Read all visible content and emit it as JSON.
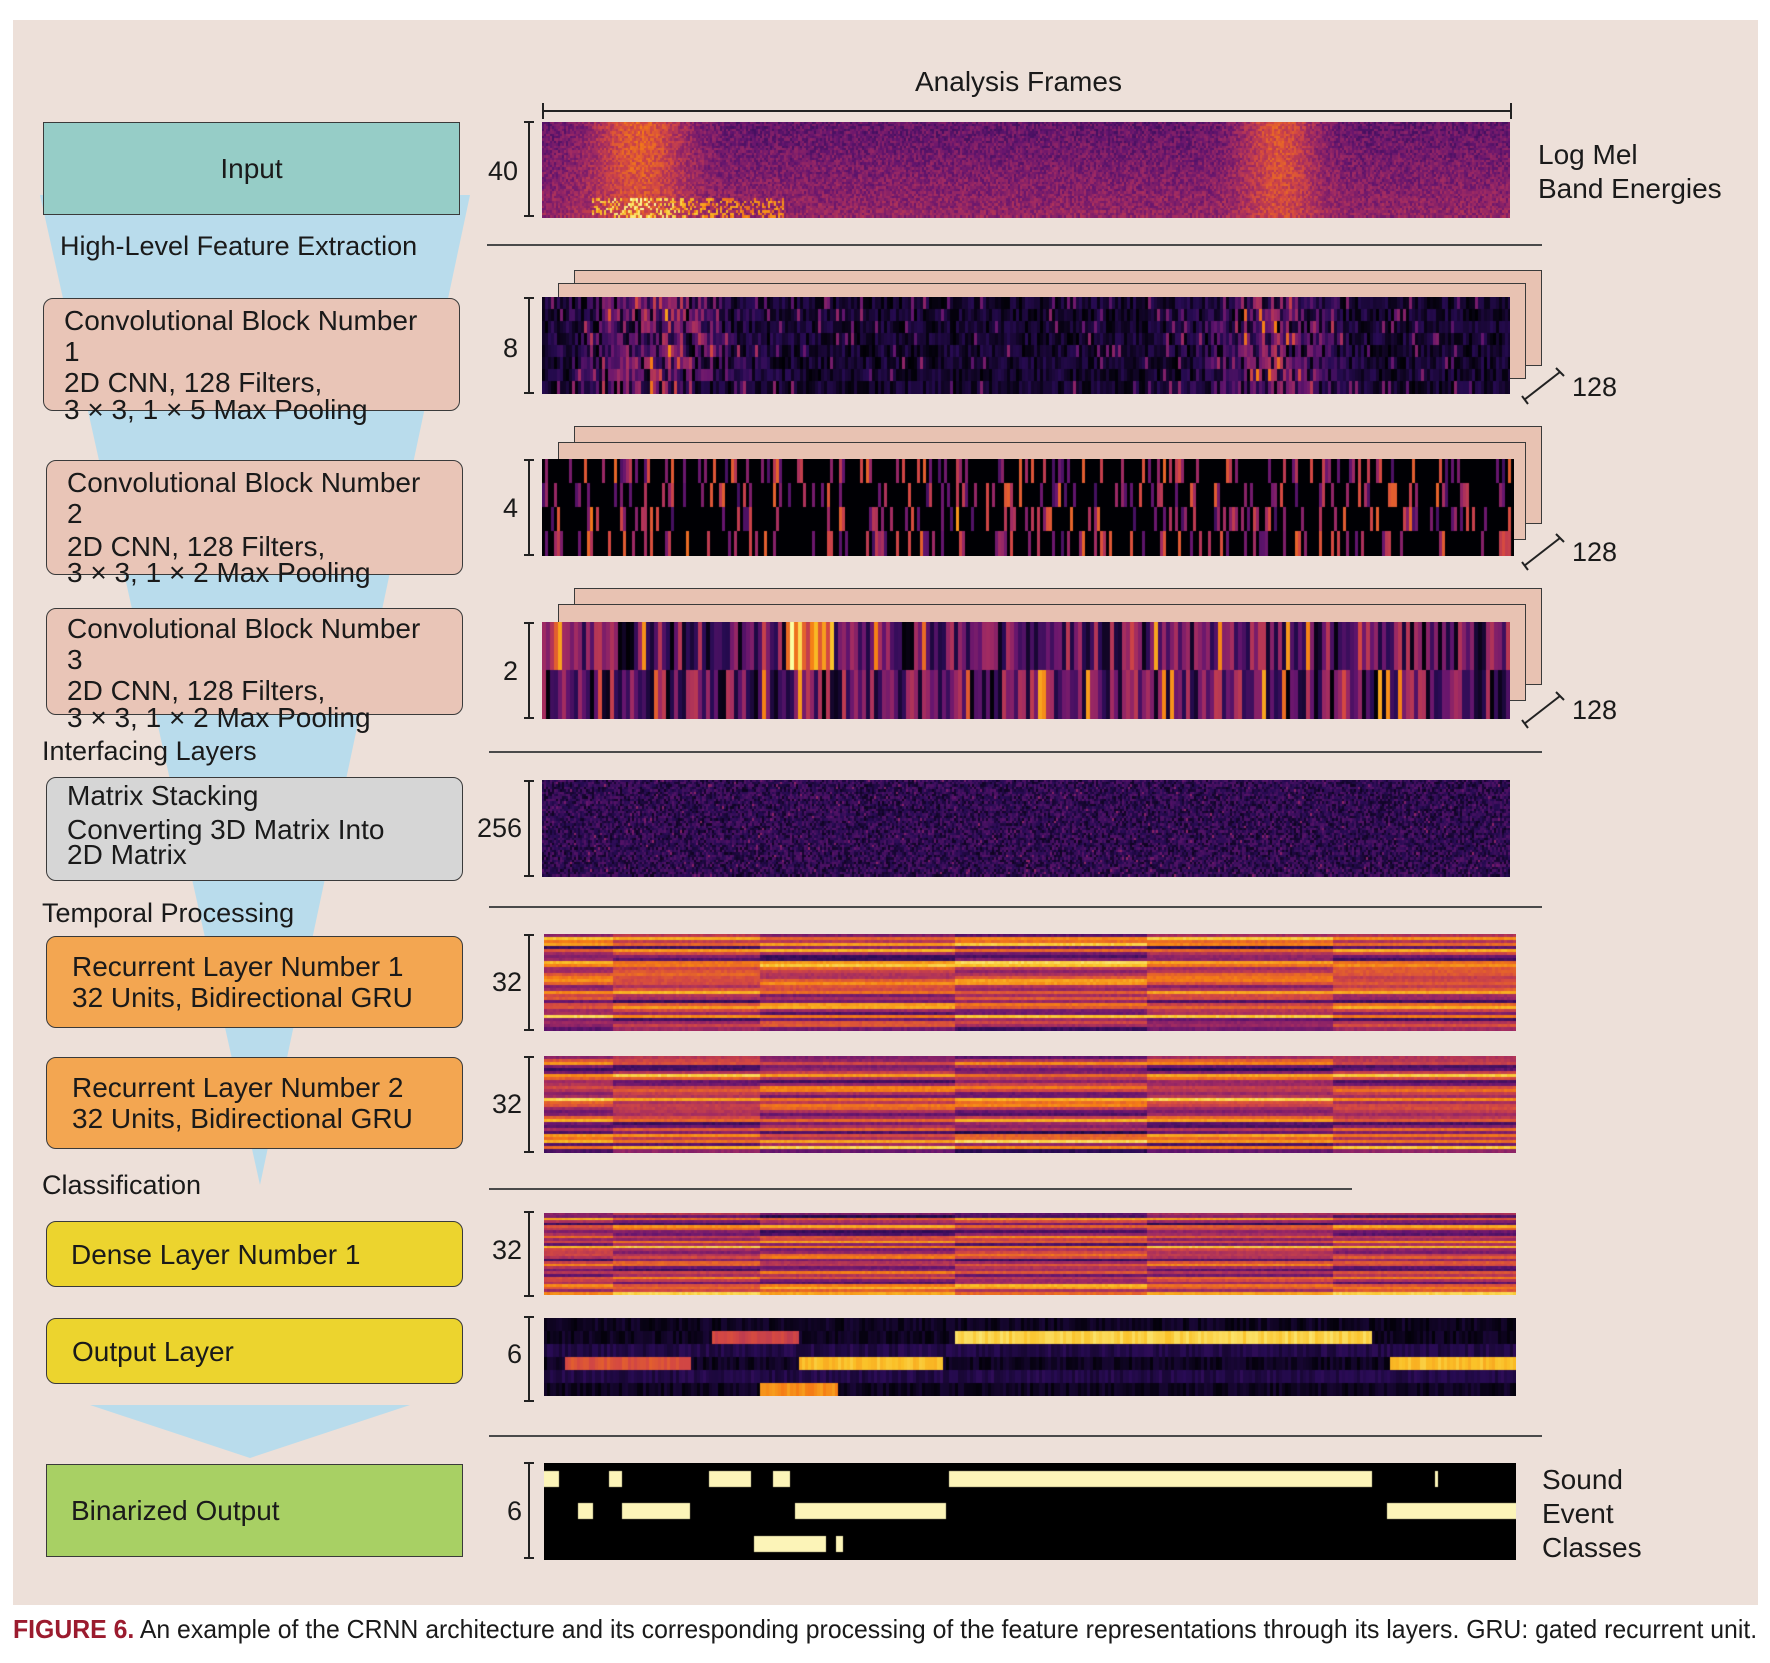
{
  "header": {
    "axis_label": "Analysis Frames"
  },
  "blocks": {
    "input": "Input",
    "conv1": [
      "Convolutional Block Number 1",
      "2D CNN, 128 Filters,",
      "3 × 3, 1 × 5 Max Pooling"
    ],
    "conv2": [
      "Convolutional Block Number 2",
      "2D CNN, 128 Filters,",
      "3 × 3, 1 × 2 Max Pooling"
    ],
    "conv3": [
      "Convolutional Block Number 3",
      "2D CNN, 128 Filters,",
      "3 × 3, 1 × 2 Max Pooling"
    ],
    "stack": [
      "Matrix Stacking",
      "Converting 3D Matrix Into",
      "2D Matrix"
    ],
    "rnn1": [
      "Recurrent Layer Number 1",
      "32 Units, Bidirectional GRU"
    ],
    "rnn2": [
      "Recurrent Layer Number 2",
      "32 Units, Bidirectional GRU"
    ],
    "dense1": "Dense Layer Number 1",
    "output": "Output Layer",
    "binarized": "Binarized Output"
  },
  "sections": {
    "feature": "High-Level Feature Extraction",
    "interfacing": "Interfacing Layers",
    "temporal": "Temporal Processing",
    "classification": "Classification"
  },
  "dims": {
    "input": "40",
    "conv1": "8",
    "conv2": "4",
    "conv3": "2",
    "stack": "256",
    "rnn1": "32",
    "rnn2": "32",
    "dense1": "32",
    "output": "6",
    "binarized": "6",
    "filters": "128"
  },
  "right_labels": {
    "input": [
      "Log Mel",
      "Band Energies"
    ],
    "output": [
      "Sound",
      "Event",
      "Classes"
    ]
  },
  "caption": {
    "label": "FIGURE 6.",
    "text": " An example of the CRNN architecture and its corresponding processing of the feature representations through its layers. GRU: gated recurrent unit."
  },
  "colors": {
    "input_box": "#96cdc7",
    "conv_box": "#e9c5b7",
    "stack_box": "#d6d6d6",
    "rnn_box": "#f3a651",
    "dense_box": "#ecd42e",
    "binarized_box": "#a8d064",
    "funnel": "#b9dcec",
    "panel": "#ede0d9"
  },
  "binarized_events": [
    {
      "row": 0,
      "segments": [
        [
          0.0,
          0.015
        ],
        [
          0.067,
          0.08
        ],
        [
          0.17,
          0.213
        ],
        [
          0.236,
          0.253
        ],
        [
          0.417,
          0.852
        ],
        [
          0.917,
          0.92
        ]
      ]
    },
    {
      "row": 1,
      "segments": [
        [
          0.035,
          0.05
        ],
        [
          0.08,
          0.15
        ],
        [
          0.258,
          0.413
        ],
        [
          0.867,
          1.0
        ]
      ]
    },
    {
      "row": 2,
      "segments": [
        [
          0.216,
          0.29
        ],
        [
          0.3,
          0.307
        ]
      ]
    }
  ]
}
